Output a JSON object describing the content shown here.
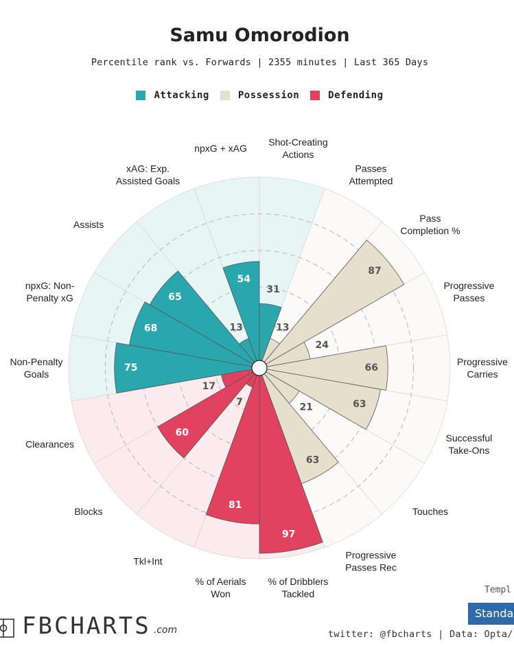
{
  "header": {
    "title": "Samu Omorodion",
    "subtitle": "Percentile rank vs. Forwards | 2355 minutes | Last 365 Days"
  },
  "legend": [
    {
      "label": "Attacking",
      "color": "#2aa6ad"
    },
    {
      "label": "Possession",
      "color": "#e6dfcc"
    },
    {
      "label": "Defending",
      "color": "#e0425f"
    }
  ],
  "chart_data": {
    "type": "polar-bar",
    "title": "Samu Omorodion",
    "scale": [
      0,
      100
    ],
    "gridlines": [
      20,
      40,
      60,
      80,
      100
    ],
    "categories": [
      {
        "label": "Shot-Creating Actions",
        "lines": [
          "Shot-Creating",
          "Actions"
        ],
        "value": 31,
        "group": "Attacking"
      },
      {
        "label": "Passes Attempted",
        "lines": [
          "Passes",
          "Attempted"
        ],
        "value": 13,
        "group": "Possession"
      },
      {
        "label": "Pass Completion %",
        "lines": [
          "Pass",
          "Completion %"
        ],
        "value": 87,
        "group": "Possession"
      },
      {
        "label": "Progressive Passes",
        "lines": [
          "Progressive",
          "Passes"
        ],
        "value": 24,
        "group": "Possession"
      },
      {
        "label": "Progressive Carries",
        "lines": [
          "Progressive",
          "Carries"
        ],
        "value": 66,
        "group": "Possession"
      },
      {
        "label": "Successful Take-Ons",
        "lines": [
          "Successful",
          "Take-Ons"
        ],
        "value": 63,
        "group": "Possession"
      },
      {
        "label": "Touches",
        "lines": [
          "Touches"
        ],
        "value": 21,
        "group": "Possession"
      },
      {
        "label": "Progressive Passes Rec",
        "lines": [
          "Progressive",
          "Passes Rec"
        ],
        "value": 63,
        "group": "Possession"
      },
      {
        "label": "% of Dribblers Tackled",
        "lines": [
          "% of Dribblers",
          "Tackled"
        ],
        "value": 97,
        "group": "Defending"
      },
      {
        "label": "% of Aerials Won",
        "lines": [
          "% of Aerials",
          "Won"
        ],
        "value": 81,
        "group": "Defending"
      },
      {
        "label": "Tkl+Int",
        "lines": [
          "Tkl+Int"
        ],
        "value": 7,
        "group": "Defending"
      },
      {
        "label": "Blocks",
        "lines": [
          "Blocks"
        ],
        "value": 60,
        "group": "Defending"
      },
      {
        "label": "Clearances",
        "lines": [
          "Clearances"
        ],
        "value": 17,
        "group": "Defending"
      },
      {
        "label": "Non-Penalty Goals",
        "lines": [
          "Non-Penalty",
          "Goals"
        ],
        "value": 75,
        "group": "Attacking"
      },
      {
        "label": "npxG: Non-Penalty xG",
        "lines": [
          "npxG: Non-",
          "Penalty xG"
        ],
        "value": 68,
        "group": "Attacking"
      },
      {
        "label": "Assists",
        "lines": [
          "Assists"
        ],
        "value": 65,
        "group": "Attacking"
      },
      {
        "label": "xAG: Exp. Assisted Goals",
        "lines": [
          "xAG: Exp.",
          "Assisted Goals"
        ],
        "value": 13,
        "group": "Attacking"
      },
      {
        "label": "npxG + xAG",
        "lines": [
          "npxG + xAG"
        ],
        "value": 54,
        "group": "Attacking"
      }
    ],
    "colors": {
      "Attacking": {
        "bar": "#2aa6ad",
        "bg": "#e8f5f5",
        "text": "#ffffff"
      },
      "Possession": {
        "bar": "#e6dfcc",
        "bg": "#fbfaf8",
        "text": "#555555"
      },
      "Defending": {
        "bar": "#e0425f",
        "bg": "#fbeaee",
        "text": "#ffffff"
      },
      "lowValueText": "#555555"
    }
  },
  "footer": {
    "brand": "FBCHARTS",
    "brand_suffix": ".com",
    "template_label": "Templ",
    "template_value": "Standa",
    "credits": "twitter: @fbcharts | Data: Opta/F"
  }
}
